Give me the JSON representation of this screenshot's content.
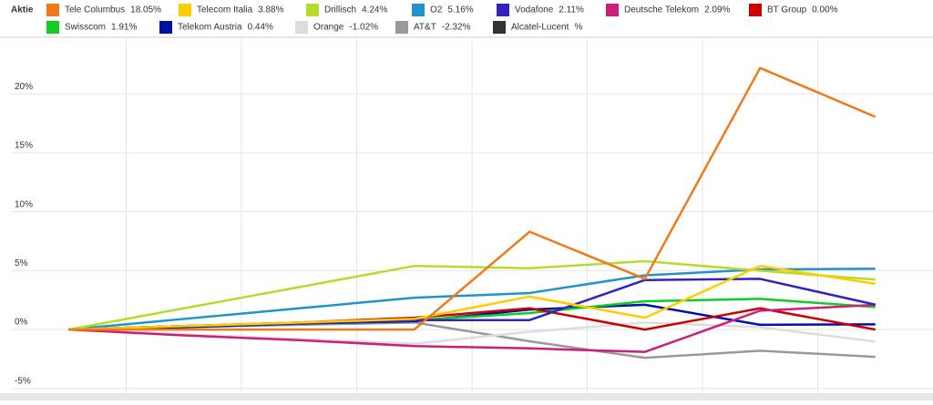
{
  "chart_data": {
    "type": "line",
    "legend_title": "Aktie",
    "categories": [
      null,
      null,
      null,
      null,
      null,
      null,
      null,
      null
    ],
    "ylim": [
      -5.4,
      24.8
    ],
    "yticks": [
      {
        "value": -5,
        "label": "-5%"
      },
      {
        "value": 0,
        "label": "0%"
      },
      {
        "value": 5,
        "label": "5%"
      },
      {
        "value": 10,
        "label": "10%"
      },
      {
        "value": 15,
        "label": "15%"
      },
      {
        "value": 20,
        "label": "20%"
      }
    ],
    "grid": true,
    "series": [
      {
        "name": "Tele Columbus",
        "label": "18.05%",
        "color": "#f07a1a",
        "values": [
          0,
          0,
          0,
          0,
          8.3,
          4.3,
          22.2,
          18.05
        ]
      },
      {
        "name": "Telecom Italia",
        "label": "3.88%",
        "color": "#ffcc00",
        "values": [
          0,
          0.3,
          0.6,
          0.9,
          2.8,
          1.0,
          5.4,
          3.88
        ]
      },
      {
        "name": "Drillisch",
        "label": "4.24%",
        "color": "#b5dc2a",
        "values": [
          0,
          1.8,
          3.6,
          5.4,
          5.2,
          5.8,
          5.0,
          4.24
        ]
      },
      {
        "name": "O2",
        "label": "5.16%",
        "color": "#1f93cc",
        "values": [
          0,
          0.9,
          1.8,
          2.7,
          3.1,
          4.6,
          5.1,
          5.16
        ]
      },
      {
        "name": "Vodafone",
        "label": "2.11%",
        "color": "#3322bb",
        "values": [
          0,
          0.3,
          0.5,
          0.8,
          0.8,
          4.2,
          4.3,
          2.11
        ]
      },
      {
        "name": "Deutsche Telekom",
        "label": "2.09%",
        "color": "#cc1f7a",
        "values": [
          0,
          -0.5,
          -0.9,
          -1.4,
          -1.6,
          -1.9,
          1.6,
          2.09
        ]
      },
      {
        "name": "BT Group",
        "label": "0.00%",
        "color": "#cc0000",
        "values": [
          0,
          0.3,
          0.6,
          1.0,
          1.8,
          0.0,
          1.8,
          0.0
        ]
      },
      {
        "name": "Swisscom",
        "label": "1.91%",
        "color": "#11cc22",
        "values": [
          0,
          0.3,
          0.5,
          0.8,
          1.4,
          2.4,
          2.6,
          1.91
        ]
      },
      {
        "name": "Telekom Austria",
        "label": "0.44%",
        "color": "#0011aa",
        "values": [
          0,
          0.2,
          0.5,
          0.7,
          1.7,
          2.1,
          0.4,
          0.44
        ]
      },
      {
        "name": "Orange",
        "label": "-1.02%",
        "color": "#dddddd",
        "values": [
          0,
          -0.4,
          -0.8,
          -1.2,
          -0.2,
          0.6,
          0.2,
          -1.02
        ]
      },
      {
        "name": "AT&T",
        "label": "-2.32%",
        "color": "#999999",
        "values": [
          0,
          0.2,
          0.4,
          0.6,
          -1.0,
          -2.4,
          -1.8,
          -2.32
        ]
      },
      {
        "name": "Alcatel-Lucent",
        "label": "%",
        "color": "#333333",
        "values": [
          null,
          null,
          null,
          null,
          null,
          null,
          null,
          null
        ]
      }
    ]
  }
}
